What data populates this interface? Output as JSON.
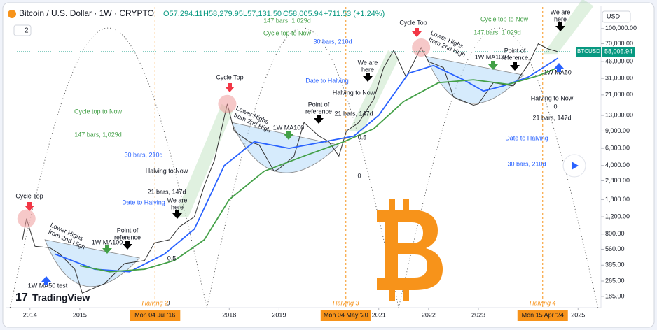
{
  "chart_data": {
    "type": "line",
    "title": "Bitcoin / U.S. Dollar · 1W · CRYPTO",
    "ohlc": [
      "O57,294.11",
      "H58,279.95",
      "L57,131.50",
      "C58,005.94",
      "+711.53 (+1.24%)"
    ],
    "interval_button": "2",
    "currency": "USD",
    "symbol_tag": "BTCUSD",
    "price_tag": {
      "value": 58005.94,
      "label": "58,005.94"
    },
    "logo": "TradingView",
    "log_scale": true,
    "xlim": [
      2013.61,
      2025.46
    ],
    "xticks": [
      2014,
      2015,
      2018,
      2019,
      2021,
      2022,
      2023,
      2025
    ],
    "ylim": [
      142,
      166000
    ],
    "yticks": [
      {
        "value": 100000,
        "label": "100,000.00"
      },
      {
        "value": 70000,
        "label": "70,000.00"
      },
      {
        "value": 46000,
        "label": "46,000.00"
      },
      {
        "value": 31000,
        "label": "31,000.00"
      },
      {
        "value": 21000,
        "label": "21,000.00"
      },
      {
        "value": 13000,
        "label": "13,000.00"
      },
      {
        "value": 9000,
        "label": "9,000.00"
      },
      {
        "value": 6000,
        "label": "6,000.00"
      },
      {
        "value": 4000,
        "label": "4,000.00"
      },
      {
        "value": 2800,
        "label": "2,800.00"
      },
      {
        "value": 1800,
        "label": "1,800.00"
      },
      {
        "value": 1200,
        "label": "1,200.00"
      },
      {
        "value": 800,
        "label": "800.00"
      },
      {
        "value": 560,
        "label": "560.00"
      },
      {
        "value": 385,
        "label": "385.00"
      },
      {
        "value": 265,
        "label": "265.00"
      },
      {
        "value": 185,
        "label": "185.00"
      }
    ],
    "series": [
      {
        "name": "BTCUSD",
        "color": "#333333",
        "x": [
          2013.85,
          2013.93,
          2014.1,
          2014.4,
          2014.6,
          2014.9,
          2015.05,
          2015.5,
          2015.9,
          2016.3,
          2016.5,
          2016.8,
          2017.0,
          2017.3,
          2017.5,
          2017.7,
          2017.96,
          2018.1,
          2018.4,
          2018.6,
          2018.9,
          2019.0,
          2019.3,
          2019.5,
          2019.8,
          2020.0,
          2020.2,
          2020.35,
          2020.6,
          2020.9,
          2021.1,
          2021.3,
          2021.55,
          2021.85,
          2022.0,
          2022.3,
          2022.5,
          2022.9,
          2023.0,
          2023.3,
          2023.7,
          2024.0,
          2024.2,
          2024.4,
          2024.6
        ],
        "values": [
          700,
          1150,
          600,
          580,
          500,
          350,
          200,
          250,
          400,
          430,
          650,
          700,
          950,
          1200,
          2500,
          4500,
          17000,
          9000,
          7000,
          6500,
          3500,
          3700,
          5000,
          11000,
          8000,
          7000,
          5000,
          9000,
          11000,
          19000,
          40000,
          60000,
          32000,
          64000,
          46000,
          40000,
          20000,
          16500,
          17000,
          28000,
          26000,
          43000,
          70000,
          62000,
          58006
        ]
      },
      {
        "name": "1W MA50",
        "color": "#2962ff",
        "x": [
          2014.5,
          2015.3,
          2016.0,
          2016.7,
          2017.3,
          2017.9,
          2018.5,
          2019.2,
          2019.9,
          2020.5,
          2021.0,
          2021.6,
          2022.1,
          2022.7,
          2023.1,
          2023.5,
          2024.0,
          2024.6
        ],
        "values": [
          500,
          350,
          330,
          500,
          900,
          4000,
          7000,
          6000,
          7000,
          8000,
          13000,
          35000,
          42000,
          30000,
          23000,
          26000,
          32000,
          50000
        ]
      },
      {
        "name": "1W MA100",
        "color": "#43a047",
        "x": [
          2015.0,
          2015.6,
          2016.3,
          2016.9,
          2017.5,
          2018.0,
          2018.7,
          2019.5,
          2020.3,
          2020.9,
          2021.5,
          2022.2,
          2022.9,
          2023.6,
          2024.2,
          2024.6
        ],
        "values": [
          380,
          330,
          350,
          430,
          700,
          1800,
          3500,
          5000,
          7000,
          9500,
          18000,
          28000,
          30000,
          27000,
          33000,
          40000
        ]
      }
    ],
    "halvings": [
      {
        "x": 2016.51,
        "label": "Mon 04 Jul '16",
        "name": "Halving 2"
      },
      {
        "x": 2020.34,
        "label": "Mon 04 May '20",
        "name": "Halving 3"
      },
      {
        "x": 2024.29,
        "label": "Mon 15 Apr '24",
        "name": "Halving 4"
      }
    ],
    "annotations": [
      {
        "text": "Cycle Top",
        "color": "#131722"
      },
      {
        "text": "Lower Highs",
        "color": "#131722"
      },
      {
        "text": "from 2nd High",
        "color": "#131722"
      },
      {
        "text": "1W MA100",
        "color": "#131722"
      },
      {
        "text": "Point of",
        "color": "#131722"
      },
      {
        "text": "reference",
        "color": "#131722"
      },
      {
        "text": "We are",
        "color": "#131722"
      },
      {
        "text": "here",
        "color": "#131722"
      },
      {
        "text": "Halving to Now",
        "color": "#131722"
      },
      {
        "text": "21 bars, 147d",
        "color": "#131722"
      },
      {
        "text": "Date to Halving",
        "color": "#2962ff"
      },
      {
        "text": "30 bars, 210d",
        "color": "#2962ff"
      },
      {
        "text": "Cycle top to Now",
        "color": "#43a047"
      },
      {
        "text": "147 bars, 1,029d",
        "color": "#43a047"
      },
      {
        "text": "0.5",
        "color": "#131722"
      },
      {
        "text": "0",
        "color": "#131722"
      },
      {
        "text": "1W MA50 test",
        "color": "#131722"
      },
      {
        "text": "Cycle Top",
        "color": "#131722"
      },
      {
        "text": "Lower Highs",
        "color": "#131722"
      },
      {
        "text": "from 2nd High",
        "color": "#131722"
      },
      {
        "text": "1W MA100",
        "color": "#131722"
      },
      {
        "text": "Point of",
        "color": "#131722"
      },
      {
        "text": "reference",
        "color": "#131722"
      },
      {
        "text": "We are",
        "color": "#131722"
      },
      {
        "text": "here",
        "color": "#131722"
      },
      {
        "text": "Halving to Now",
        "color": "#131722"
      },
      {
        "text": "21 bars, 147d",
        "color": "#131722"
      },
      {
        "text": "Date to Halving",
        "color": "#2962ff"
      },
      {
        "text": "30 bars, 210d",
        "color": "#2962ff"
      },
      {
        "text": "Cycle top to Now",
        "color": "#43a047"
      },
      {
        "text": "147 bars, 1,029d",
        "color": "#43a047"
      },
      {
        "text": "0.5",
        "color": "#131722"
      },
      {
        "text": "0",
        "color": "#131722"
      },
      {
        "text": "Cycle Top",
        "color": "#131722"
      },
      {
        "text": "Lower Highs",
        "color": "#131722"
      },
      {
        "text": "from 2nd High",
        "color": "#131722"
      },
      {
        "text": "1W MA100",
        "color": "#131722"
      },
      {
        "text": "Point of",
        "color": "#131722"
      },
      {
        "text": "reference",
        "color": "#131722"
      },
      {
        "text": "We are",
        "color": "#131722"
      },
      {
        "text": "here",
        "color": "#131722"
      },
      {
        "text": "Halving to Now",
        "color": "#131722"
      },
      {
        "text": "21 bars, 147d",
        "color": "#131722"
      },
      {
        "text": "Date to Halving",
        "color": "#2962ff"
      },
      {
        "text": "30 bars, 210d",
        "color": "#2962ff"
      },
      {
        "text": "Cycle top to Now",
        "color": "#43a047"
      },
      {
        "text": "147 bars, 1,029d",
        "color": "#43a047"
      },
      {
        "text": "1W MA50",
        "color": "#131722"
      },
      {
        "text": "0",
        "color": "#131722"
      }
    ]
  }
}
